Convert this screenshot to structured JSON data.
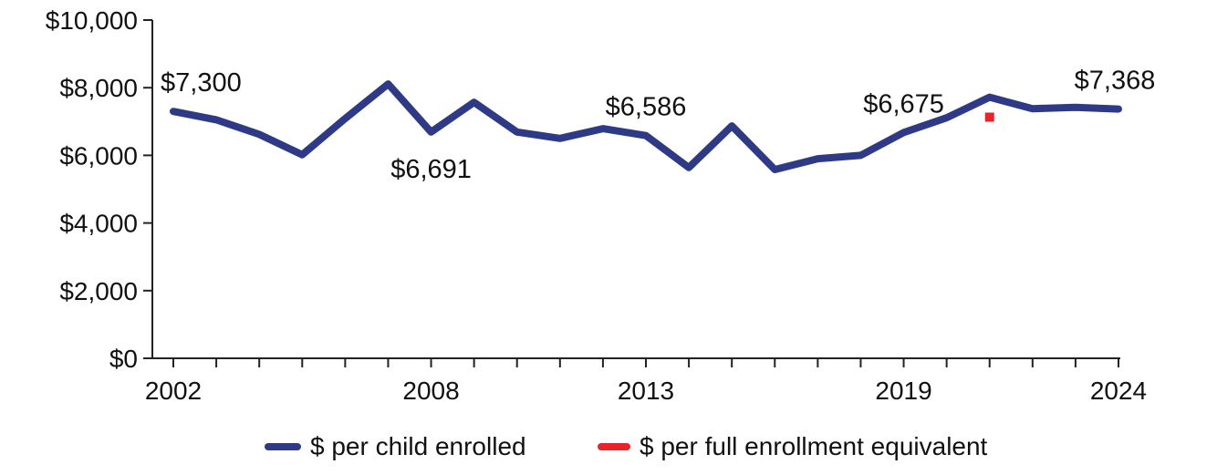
{
  "chart_data": {
    "type": "line",
    "title": "",
    "xlabel": "",
    "ylabel": "",
    "x": [
      2002,
      2003,
      2004,
      2005,
      2006,
      2007,
      2008,
      2009,
      2010,
      2011,
      2012,
      2013,
      2014,
      2015,
      2016,
      2017,
      2018,
      2019,
      2020,
      2021,
      2022,
      2023,
      2024
    ],
    "x_tick_labels": [
      "2002",
      "2008",
      "2013",
      "2019",
      "2024"
    ],
    "y_tick_labels": [
      "$0",
      "$2,000",
      "$4,000",
      "$6,000",
      "$8,000",
      "$10,000"
    ],
    "ylim": [
      0,
      10000
    ],
    "grid": false,
    "legend_position": "bottom",
    "series": [
      {
        "name": "$ per child enrolled",
        "color": "#2f3a86",
        "values": [
          7300,
          7050,
          6620,
          6020,
          7090,
          8110,
          6691,
          7570,
          6690,
          6500,
          6790,
          6586,
          5640,
          6870,
          5580,
          5900,
          6000,
          6675,
          7110,
          7720,
          7380,
          7420,
          7368
        ]
      },
      {
        "name": "$ per full enrollment equivalent",
        "color": "#e8232a",
        "points": [
          {
            "x": 2021,
            "y": 7130
          }
        ]
      }
    ],
    "annotations": [
      {
        "x": 2002,
        "y": 7300,
        "text": "$7,300",
        "position": "above"
      },
      {
        "x": 2008,
        "y": 6691,
        "text": "$6,691",
        "position": "below"
      },
      {
        "x": 2013,
        "y": 6586,
        "text": "$6,586",
        "position": "above"
      },
      {
        "x": 2019,
        "y": 6675,
        "text": "$6,675",
        "position": "above"
      },
      {
        "x": 2024,
        "y": 7368,
        "text": "$7,368",
        "position": "above"
      }
    ]
  }
}
